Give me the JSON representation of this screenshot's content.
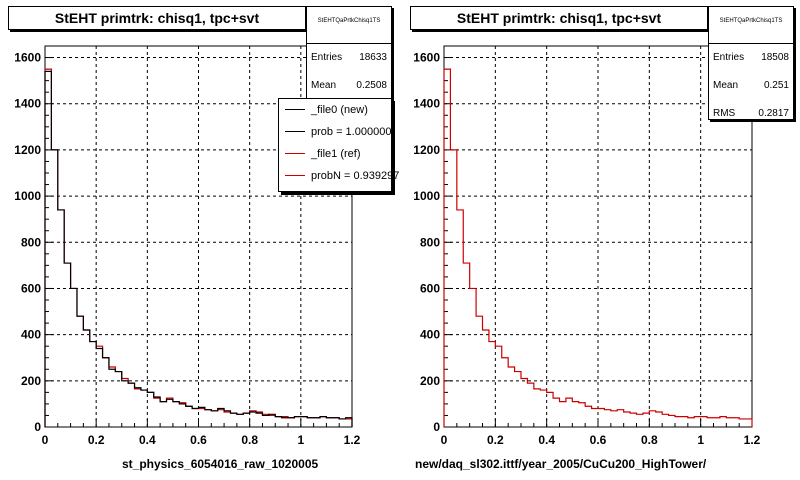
{
  "panels": [
    {
      "title": "StEHT primtrk: chisq1, tpc+svt",
      "xtitle": "st_physics_6054016_raw_1020005",
      "stats": {
        "name": "StEHTQaPrtkChisq1TS",
        "rows": [
          {
            "label": "Entries",
            "value": "18633"
          },
          {
            "label": "Mean",
            "value": "0.2508"
          }
        ]
      },
      "legend": [
        {
          "label": "_file0 (new)",
          "color": "#000000"
        },
        {
          "label": "prob = 1.000000",
          "color": "#000000"
        },
        {
          "label": "_file1 (ref)",
          "color": "#cc0000"
        },
        {
          "label": "probN = 0.939297",
          "color": "#cc0000"
        }
      ]
    },
    {
      "title": "StEHT primtrk: chisq1, tpc+svt",
      "xtitle": "new/daq_sl302.ittf/year_2005/CuCu200_HighTower/",
      "stats": {
        "name": "StEHTQaPrtkChisq1TS",
        "rows": [
          {
            "label": "Entries",
            "value": "18508"
          },
          {
            "label": "Mean",
            "value": "0.251"
          },
          {
            "label": "RMS",
            "value": "0.2817"
          }
        ]
      }
    }
  ],
  "chart_data": [
    {
      "type": "histogram",
      "title": "StEHT primtrk: chisq1, tpc+svt",
      "xlabel": "st_physics_6054016_raw_1020005",
      "ylabel": "",
      "xlim": [
        0,
        1.2
      ],
      "ylim": [
        0,
        1650
      ],
      "xticks": [
        0,
        0.2,
        0.4,
        0.6,
        0.8,
        1,
        1.2
      ],
      "xtick_labels": [
        "0",
        "0.2",
        "0.4",
        "0.6",
        "0.8",
        "1",
        "1.2"
      ],
      "yticks": [
        0,
        200,
        400,
        600,
        800,
        1000,
        1200,
        1400,
        1600
      ],
      "ytick_labels": [
        "0",
        "200",
        "400",
        "600",
        "800",
        "1000",
        "1200",
        "1400",
        "1600"
      ],
      "grid": true,
      "bin_width": 0.025,
      "series": [
        {
          "name": "_file0 (new)",
          "color": "#000000",
          "values": [
            1540,
            1200,
            940,
            710,
            600,
            480,
            420,
            370,
            340,
            300,
            250,
            240,
            200,
            190,
            170,
            160,
            150,
            130,
            110,
            120,
            110,
            100,
            90,
            80,
            85,
            75,
            70,
            80,
            70,
            60,
            55,
            60,
            65,
            60,
            50,
            55,
            45,
            40,
            40,
            45,
            45,
            40,
            40,
            45,
            40,
            40,
            35,
            40
          ]
        },
        {
          "name": "_file1 (ref)",
          "color": "#cc0000",
          "values": [
            1550,
            1200,
            940,
            710,
            600,
            480,
            420,
            370,
            350,
            300,
            260,
            240,
            210,
            190,
            165,
            160,
            150,
            125,
            110,
            125,
            110,
            105,
            90,
            80,
            80,
            75,
            70,
            75,
            65,
            60,
            55,
            60,
            70,
            65,
            55,
            50,
            45,
            45,
            40,
            45,
            45,
            40,
            40,
            45,
            40,
            40,
            35,
            35
          ]
        }
      ]
    },
    {
      "type": "histogram",
      "title": "StEHT primtrk: chisq1, tpc+svt",
      "xlabel": "new/daq_sl302.ittf/year_2005/CuCu200_HighTower/",
      "ylabel": "",
      "xlim": [
        0,
        1.2
      ],
      "ylim": [
        0,
        1650
      ],
      "xticks": [
        0,
        0.2,
        0.4,
        0.6,
        0.8,
        1,
        1.2
      ],
      "xtick_labels": [
        "0",
        "0.2",
        "0.4",
        "0.6",
        "0.8",
        "1",
        "1.2"
      ],
      "yticks": [
        0,
        200,
        400,
        600,
        800,
        1000,
        1200,
        1400,
        1600
      ],
      "ytick_labels": [
        "0",
        "200",
        "400",
        "600",
        "800",
        "1000",
        "1200",
        "1400",
        "1600"
      ],
      "grid": true,
      "bin_width": 0.025,
      "series": [
        {
          "name": "",
          "color": "#cc0000",
          "values": [
            1550,
            1200,
            940,
            710,
            600,
            480,
            420,
            370,
            350,
            300,
            260,
            240,
            210,
            190,
            165,
            160,
            150,
            125,
            110,
            125,
            110,
            105,
            90,
            80,
            80,
            75,
            70,
            75,
            65,
            60,
            55,
            60,
            70,
            65,
            55,
            50,
            45,
            45,
            40,
            45,
            45,
            40,
            40,
            45,
            40,
            40,
            35,
            35
          ]
        }
      ]
    }
  ]
}
